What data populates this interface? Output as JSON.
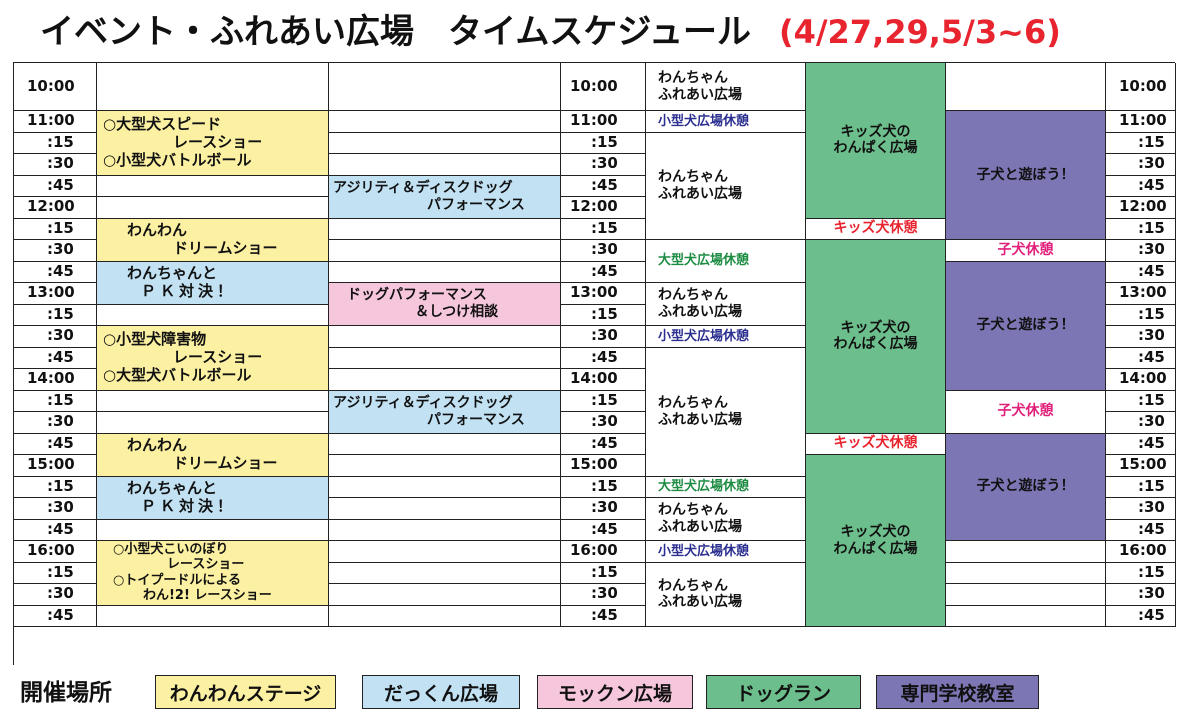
{
  "title": {
    "main": "イベント・ふれあい広場　タイムスケジュール",
    "dates": "(4/27,29,5/3~6)"
  },
  "times": [
    "10:00",
    "11:00",
    ":15",
    ":30",
    ":45",
    "12:00",
    ":15",
    ":30",
    ":45",
    "13:00",
    ":15",
    ":30",
    ":45",
    "14:00",
    ":15",
    ":30",
    ":45",
    "15:00",
    ":15",
    ":30",
    ":45",
    "16:00",
    ":15",
    ":30",
    ":45"
  ],
  "wanwan_stage": {
    "big_speed": [
      "○大型犬スピード",
      "レースショー"
    ],
    "small_battle": "○小型犬バトルボール",
    "dream1": [
      "わんわん",
      "ドリームショー"
    ],
    "small_obstacle": [
      "○小型犬障害物",
      "レースショー"
    ],
    "big_battle": "○大型犬バトルボール",
    "dream2": [
      "わんわん",
      "ドリームショー"
    ],
    "koinobori": [
      "○小型犬こいのぼり",
      "レースショー"
    ],
    "toypoodle": [
      "○トイプードルによる",
      "わん!2! レースショー"
    ]
  },
  "dakkun": {
    "pk1": [
      "わんちゃんと",
      "ＰＫ対決！"
    ],
    "pk2": [
      "わんちゃんと",
      "ＰＫ対決！"
    ]
  },
  "mokkun": {
    "agility1": [
      "アジリティ＆ディスクドッグ",
      "パフォーマンス"
    ],
    "dog_perf": [
      "ドッグパフォーマンス",
      "＆しつけ相談"
    ],
    "agility2": [
      "アジリティ＆ディスクドッグ",
      "パフォーマンス"
    ]
  },
  "dogrun_big": {
    "fureai": [
      "わんちゃん",
      "ふれあい広場"
    ],
    "small_break": "小型犬広場休憩",
    "big_break": "大型犬広場休憩"
  },
  "dogrun_kids": {
    "kids": [
      "キッズ犬の",
      "わんぱく広場"
    ],
    "kids_break": "キッズ犬休憩"
  },
  "school": {
    "puppy": "子犬と遊ぼう！",
    "puppy_break": "子犬休憩"
  },
  "legend": {
    "label": "開催場所",
    "items": [
      "わんわんステージ",
      "だっくん広場",
      "モックン広場",
      "ドッグラン",
      "専門学校教室"
    ]
  },
  "colors": {
    "title_dates": "#e8242f",
    "wanwan_stage": "#fcf1a2",
    "dakkun": "#c2e2f4",
    "mokkun": "#f6c6dc",
    "dogrun": "#6cbf8c",
    "school": "#7c76b4",
    "small_break_text": "#2b2f8f",
    "big_break_text": "#1d8c43",
    "kids_break_text": "#e8242f",
    "puppy_break_text": "#e0207a"
  }
}
